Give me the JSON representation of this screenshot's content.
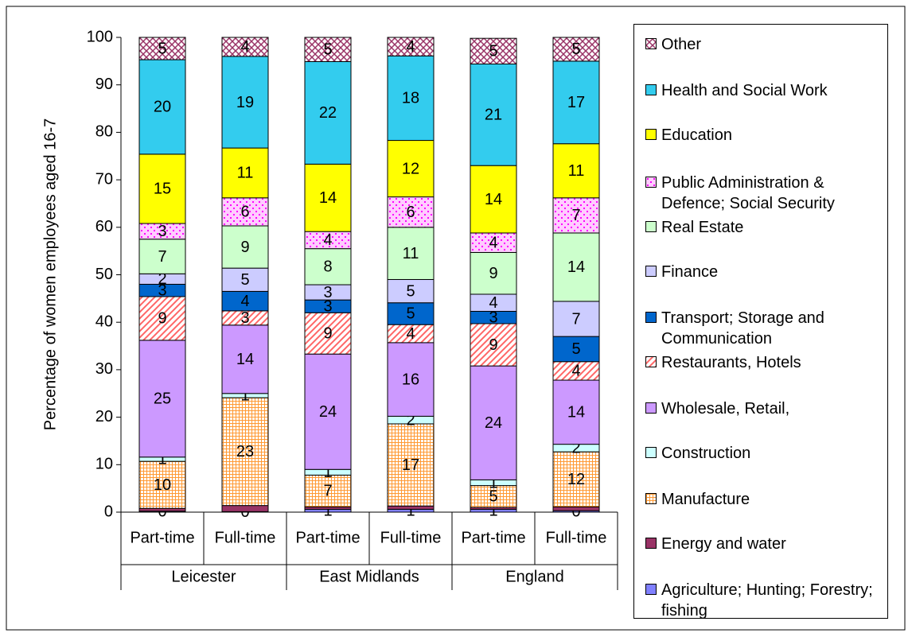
{
  "chart_data": {
    "type": "stacked_bar",
    "y_label": "Percentage of women employees aged 16-7",
    "categories": [
      "Part-time",
      "Full-time",
      "Part-time",
      "Full-time",
      "Part-time",
      "Full-time"
    ],
    "category_groups": [
      "Leicester",
      "East Midlands",
      "England"
    ],
    "ylim": [
      0,
      100
    ],
    "yticks": [
      0,
      10,
      20,
      30,
      40,
      50,
      60,
      70,
      80,
      90,
      100
    ],
    "grid": false,
    "legend": "right",
    "series": [
      {
        "name": "Agriculture; Hunting; Forestry; fishing",
        "color": "#8080ff",
        "pattern": "solid",
        "values": [
          0.2,
          0.1,
          0.6,
          0.6,
          0.6,
          0.3
        ],
        "value_labels": [
          "0",
          "0",
          "1",
          "1",
          "1",
          "0"
        ]
      },
      {
        "name": "Energy and water",
        "color": "#993366",
        "pattern": "solid",
        "values": [
          0.6,
          1.3,
          0.5,
          0.7,
          0.4,
          0.8
        ],
        "value_labels": [
          null,
          null,
          null,
          null,
          null,
          null
        ]
      },
      {
        "name": "Manufacture",
        "color": "#ff9933",
        "pattern": "grid",
        "values": [
          9.9,
          22.7,
          6.7,
          17.3,
          4.6,
          11.6
        ],
        "value_labels": [
          "10",
          "23",
          "7",
          "17",
          "5",
          "12"
        ]
      },
      {
        "name": "Construction",
        "color": "#ccffff",
        "pattern": "solid",
        "values": [
          0.9,
          0.9,
          1.2,
          1.6,
          1.2,
          1.6
        ],
        "value_labels": [
          "1",
          "1",
          "1",
          "2",
          "1",
          "2"
        ]
      },
      {
        "name": "Wholesale, Retail,",
        "color": "#cc99ff",
        "pattern": "solid",
        "values": [
          24.6,
          14.4,
          24.3,
          15.5,
          24.0,
          13.5
        ],
        "value_labels": [
          "25",
          "14",
          "24",
          "16",
          "24",
          "14"
        ]
      },
      {
        "name": "Restaurants, Hotels",
        "color": "#ff6666",
        "pattern": "diagonal",
        "values": [
          9.2,
          3.0,
          8.7,
          3.8,
          8.9,
          3.9
        ],
        "value_labels": [
          "9",
          "3",
          "9",
          "4",
          "9",
          "4"
        ]
      },
      {
        "name": "Transport; Storage and Communication",
        "color": "#0066cc",
        "pattern": "solid",
        "values": [
          2.6,
          4.1,
          2.7,
          4.6,
          2.6,
          5.3
        ],
        "value_labels": [
          "3",
          "4",
          "3",
          "5",
          "3",
          "5"
        ]
      },
      {
        "name": "Finance",
        "color": "#ccccff",
        "pattern": "solid",
        "values": [
          2.2,
          4.9,
          3.2,
          4.9,
          3.6,
          7.4
        ],
        "value_labels": [
          "2",
          "5",
          "3",
          "5",
          "4",
          "7"
        ]
      },
      {
        "name": "Real Estate",
        "color": "#ccffcc",
        "pattern": "solid",
        "values": [
          7.3,
          8.9,
          7.6,
          11.0,
          8.8,
          14.4
        ],
        "value_labels": [
          "7",
          "9",
          "8",
          "11",
          "9",
          "14"
        ]
      },
      {
        "name": "Public Administration & Defence; Social Security",
        "color": "#ff00ff",
        "pattern": "dots",
        "values": [
          3.3,
          5.9,
          3.6,
          6.4,
          4.1,
          7.4
        ],
        "value_labels": [
          "3",
          "6",
          "4",
          "6",
          "4",
          "7"
        ]
      },
      {
        "name": "Education",
        "color": "#ffff00",
        "pattern": "solid",
        "values": [
          14.6,
          10.5,
          14.2,
          11.9,
          14.2,
          11.4
        ],
        "value_labels": [
          "15",
          "11",
          "14",
          "12",
          "14",
          "11"
        ]
      },
      {
        "name": "Health and Social Work",
        "color": "#33ccee",
        "pattern": "solid",
        "values": [
          19.9,
          19.3,
          21.6,
          17.8,
          21.4,
          17.4
        ],
        "value_labels": [
          "20",
          "19",
          "22",
          "18",
          "21",
          "17"
        ]
      },
      {
        "name": "Other",
        "color": "#993366",
        "pattern": "crosshatch",
        "values": [
          4.7,
          4.0,
          5.1,
          3.9,
          5.4,
          5.0
        ],
        "value_labels": [
          "5",
          "4",
          "5",
          "4",
          "5",
          "5"
        ]
      }
    ]
  }
}
